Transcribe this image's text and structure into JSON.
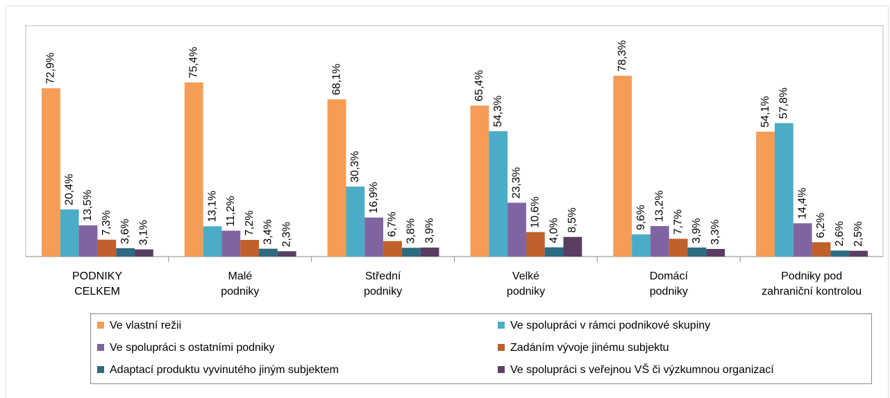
{
  "chart_data": {
    "type": "bar",
    "categories": [
      "PODNIKY\nCELKEM",
      "Malé\npodniky",
      "Střední\npodniky",
      "Velké\npodniky",
      "Domácí\npodniky",
      "Podniky pod\nzahraniční kontrolou"
    ],
    "ylim": [
      0,
      100
    ],
    "series": [
      {
        "name": "Ve vlastní režii",
        "color": "#f59d56",
        "values": [
          72.9,
          75.4,
          68.1,
          65.4,
          78.3,
          54.1
        ],
        "value_labels": [
          "72,9%",
          "75,4%",
          "68,1%",
          "65,4%",
          "78,3%",
          "54,1%"
        ]
      },
      {
        "name": "Ve spolupráci v rámci podnikové skupiny",
        "color": "#4bacc6",
        "values": [
          20.4,
          13.1,
          30.3,
          54.3,
          9.6,
          57.8
        ],
        "value_labels": [
          "20,4%",
          "13,1%",
          "30,3%",
          "54,3%",
          "9,6%",
          "57,8%"
        ]
      },
      {
        "name": "Ve spolupráci s ostatními podniky",
        "color": "#8064a2",
        "values": [
          13.5,
          11.2,
          16.9,
          23.3,
          13.2,
          14.4
        ],
        "value_labels": [
          "13,5%",
          "11,2%",
          "16,9%",
          "23,3%",
          "13,2%",
          "14,4%"
        ]
      },
      {
        "name": "Zadáním vývoje jinému subjektu",
        "color": "#c0602a",
        "values": [
          7.3,
          7.2,
          6.7,
          10.6,
          7.7,
          6.2
        ],
        "value_labels": [
          "7,3%",
          "7,2%",
          "6,7%",
          "10,6%",
          "7,7%",
          "6,2%"
        ]
      },
      {
        "name": "Adaptací produktu vyvinutého jiným subjektem",
        "color": "#2c6b80",
        "values": [
          3.6,
          3.4,
          3.8,
          4.0,
          3.9,
          2.6
        ],
        "value_labels": [
          "3,6%",
          "3,4%",
          "3,8%",
          "4,0%",
          "3,9%",
          "2,6%"
        ]
      },
      {
        "name": "Ve spolupráci s veřejnou VŠ či výzkumnou organizací",
        "color": "#5a3e62",
        "values": [
          3.1,
          2.3,
          3.9,
          8.5,
          3.3,
          2.5
        ],
        "value_labels": [
          "3,1%",
          "2,3%",
          "3,9%",
          "8,5%",
          "3,3%",
          "2,5%"
        ]
      }
    ]
  }
}
